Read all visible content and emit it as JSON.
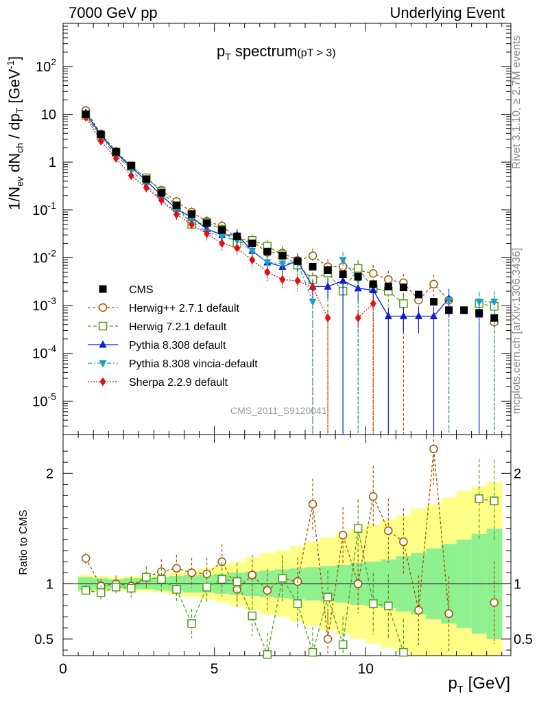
{
  "header": {
    "left": "7000 GeV pp",
    "right": "Underlying Event"
  },
  "side_text": {
    "rivet": "Rivet 3.1.10, ≥ 2.7M events",
    "mcplots": "mcplots.cern.ch [arXiv:1306.3436]"
  },
  "chart_data": {
    "type": "scatter",
    "title_main": "p",
    "title_sub": "T",
    "title_rest": " spectrum",
    "title_cut": "(pT >  3)",
    "watermark": "CMS_2011_S9120041",
    "ylabel_main": "1/N",
    "ylabel_ev": "ev",
    "ylabel_dn": " dN",
    "ylabel_ch": "ch",
    "ylabel_dp": " / dp",
    "ylabel_t": "T",
    "ylabel_unit": " [GeV",
    "ylabel_exp": "-1",
    "ylabel_close": "]",
    "ratio_ylabel": "Ratio to CMS",
    "xlabel_main": "p",
    "xlabel_sub": "T",
    "xlabel_unit": " [GeV]",
    "xlim": [
      0,
      14.8
    ],
    "ylim_log": [
      2e-06,
      800
    ],
    "ratio_ylim": [
      0.35,
      2.35
    ],
    "xticks": [
      0,
      5,
      10
    ],
    "yticks_main": [
      {
        "pre": "10",
        "exp": "-5",
        "v": 1e-05
      },
      {
        "pre": "10",
        "exp": "-4",
        "v": 0.0001
      },
      {
        "pre": "10",
        "exp": "-3",
        "v": 0.001
      },
      {
        "pre": "10",
        "exp": "-2",
        "v": 0.01
      },
      {
        "pre": "10",
        "exp": "-1",
        "v": 0.1
      },
      {
        "pre": "1",
        "exp": "",
        "v": 1
      },
      {
        "pre": "10",
        "exp": "",
        "v": 10
      },
      {
        "pre": "10",
        "exp": "2",
        "v": 100
      }
    ],
    "yticks_ratio": [
      {
        "label": "0.5",
        "v": 0.5
      },
      {
        "label": "1",
        "v": 1
      },
      {
        "label": "2",
        "v": 2
      }
    ],
    "x": [
      0.75,
      1.25,
      1.75,
      2.25,
      2.75,
      3.25,
      3.75,
      4.25,
      4.75,
      5.25,
      5.75,
      6.25,
      6.75,
      7.25,
      7.75,
      8.25,
      8.75,
      9.25,
      9.75,
      10.25,
      10.75,
      11.25,
      11.75,
      12.25,
      12.75,
      13.25,
      13.75,
      14.25
    ],
    "data": {
      "name": "CMS",
      "color": "#000000",
      "values": [
        10,
        3.8,
        1.65,
        0.85,
        0.44,
        0.23,
        0.125,
        0.082,
        0.053,
        0.038,
        0.028,
        0.02,
        0.0135,
        0.011,
        0.0085,
        0.0065,
        0.0055,
        0.0045,
        0.004,
        0.0028,
        0.0025,
        0.0024,
        0.0017,
        0.0012,
        0.0008,
        0.0008,
        0.0007,
        0.00055
      ]
    },
    "series": [
      {
        "name": "Herwig++ 2.7.1 default",
        "color": "#a35200",
        "marker": "circle-open",
        "dash": "4,3",
        "values": [
          12,
          3.9,
          1.68,
          0.82,
          0.47,
          0.26,
          0.15,
          0.09,
          0.058,
          0.046,
          0.026,
          0.022,
          0.013,
          0.0125,
          0.0088,
          0.011,
          0.0065,
          0.0065,
          0.0055,
          0.0047,
          0.0035,
          0.003,
          0.0013,
          0.0028,
          0.0013,
          null,
          null,
          0.00045
        ]
      },
      {
        "name": "Herwig 7.2.1 default",
        "color": "#4f9a1e",
        "marker": "square-open",
        "dash": "5,3",
        "values": [
          9.5,
          3.5,
          1.6,
          0.82,
          0.47,
          0.24,
          0.12,
          0.05,
          0.055,
          0.039,
          0.02,
          0.023,
          0.0175,
          0.0115,
          0.007,
          0.0035,
          0.0048,
          0.002,
          0.006,
          0.0023,
          0.002,
          0.0011,
          null,
          null,
          null,
          null,
          0.0011,
          0.00096
        ]
      },
      {
        "name": "Pythia 8.308 default",
        "color": "#0a1ed6",
        "marker": "triangle-up",
        "dash": "",
        "values": [
          10.8,
          3.7,
          1.55,
          0.78,
          0.41,
          0.2,
          0.105,
          0.07,
          0.04,
          0.03,
          0.03,
          0.014,
          0.008,
          0.0065,
          0.0085,
          0.0025,
          0.0025,
          0.0033,
          0.0023,
          0.0021,
          0.0006,
          0.0006,
          0.0006,
          0.0006,
          0.0014,
          null,
          0.00065,
          null
        ]
      },
      {
        "name": "Pythia 8.308 vincia-default",
        "color": "#1aa0c4",
        "marker": "triangle-down",
        "dash": "6,3,2,3",
        "values": [
          9.7,
          3.25,
          1.4,
          0.7,
          0.33,
          0.16,
          0.09,
          0.06,
          0.034,
          0.028,
          0.023,
          0.014,
          0.008,
          0.0075,
          0.008,
          0.0012,
          null,
          0.009,
          0.0035,
          null,
          null,
          null,
          null,
          null,
          0.0013,
          null,
          0.0012,
          0.0012
        ]
      },
      {
        "name": "Sherpa 2.2.9 default",
        "color": "#e21010",
        "marker": "diamond",
        "dash": "2,2",
        "values": [
          8.7,
          2.75,
          1.2,
          0.52,
          0.29,
          0.16,
          0.08,
          0.05,
          0.032,
          0.02,
          0.016,
          0.009,
          0.005,
          0.0035,
          0.0033,
          0.0024,
          0.00055,
          null,
          0.00055,
          0.0011,
          null,
          null,
          null,
          null,
          null,
          null,
          null,
          null
        ]
      }
    ],
    "ratio": {
      "band_inner": [
        0.06,
        0.05,
        0.04,
        0.05,
        0.05,
        0.06,
        0.07,
        0.08,
        0.08,
        0.09,
        0.1,
        0.11,
        0.12,
        0.13,
        0.14,
        0.15,
        0.16,
        0.17,
        0.19,
        0.2,
        0.22,
        0.25,
        0.28,
        0.32,
        0.36,
        0.4,
        0.45,
        0.5
      ],
      "band_outer": [
        0.08,
        0.07,
        0.06,
        0.07,
        0.07,
        0.08,
        0.1,
        0.12,
        0.14,
        0.17,
        0.2,
        0.24,
        0.28,
        0.3,
        0.34,
        0.38,
        0.42,
        0.46,
        0.5,
        0.54,
        0.58,
        0.62,
        0.68,
        0.72,
        0.78,
        0.84,
        0.88,
        0.92
      ],
      "series": [
        [
          1.23,
          0.98,
          1.0,
          0.98,
          1.06,
          1.11,
          1.14,
          1.1,
          1.09,
          1.2,
          0.95,
          1.08,
          0.94,
          1.05,
          1.02,
          1.72,
          0.5,
          1.44,
          1.0,
          1.79,
          1.48,
          1.38,
          0.76,
          2.22,
          0.73,
          null,
          null,
          0.83
        ],
        [
          0.94,
          0.92,
          0.97,
          0.96,
          1.06,
          1.04,
          0.95,
          0.64,
          0.97,
          1.04,
          1.02,
          0.71,
          0.36,
          1.05,
          0.82,
          0.38,
          0.88,
          0.45,
          1.5,
          0.82,
          0.8,
          0.38,
          null,
          null,
          null,
          null,
          1.77,
          1.75
        ]
      ]
    }
  }
}
